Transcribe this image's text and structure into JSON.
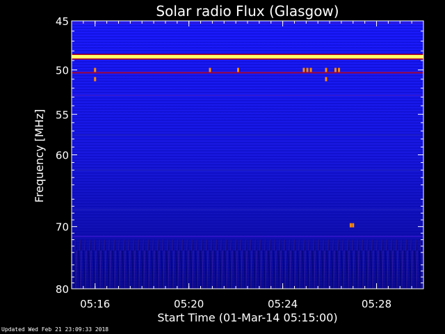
{
  "chart_data": {
    "type": "heatmap",
    "title": "Solar radio Flux (Glasgow)",
    "xlabel": "Start Time (01-Mar-14 05:15:00)",
    "ylabel": "Frequency [MHz]",
    "x_unit": "minutes after 05:00 UT",
    "xlim": [
      15.0,
      30.0
    ],
    "ylim": [
      80,
      45
    ],
    "x_ticks": [
      {
        "value": 16,
        "label": "05:16"
      },
      {
        "value": 20,
        "label": "05:20"
      },
      {
        "value": 24,
        "label": "05:24"
      },
      {
        "value": 28,
        "label": "05:28"
      }
    ],
    "y_ticks": [
      {
        "value": 45,
        "label": "45"
      },
      {
        "value": 50,
        "label": "50"
      },
      {
        "value": 55,
        "label": "55"
      },
      {
        "value": 60,
        "label": "60"
      },
      {
        "value": 70,
        "label": "70"
      },
      {
        "value": 80,
        "label": "80"
      }
    ],
    "bands": [
      {
        "freq": 45.2,
        "intensity": 0.45
      },
      {
        "freq": 48.6,
        "intensity": 1.0
      },
      {
        "freq": 50.3,
        "intensity": 0.6
      },
      {
        "freq": 52.8,
        "intensity": 0.3
      },
      {
        "freq": 57.5,
        "intensity": 0.22
      },
      {
        "freq": 62.0,
        "intensity": 0.18
      },
      {
        "freq": 67.5,
        "intensity": 0.15
      },
      {
        "freq": 71.5,
        "intensity": 0.25
      }
    ],
    "bursts": [
      {
        "x": 16.0,
        "freq": 50.0
      },
      {
        "x": 16.0,
        "freq": 51.0
      },
      {
        "x": 20.9,
        "freq": 50.0
      },
      {
        "x": 22.1,
        "freq": 50.0
      },
      {
        "x": 24.9,
        "freq": 50.0
      },
      {
        "x": 25.05,
        "freq": 50.0
      },
      {
        "x": 25.2,
        "freq": 50.0
      },
      {
        "x": 25.85,
        "freq": 50.0
      },
      {
        "x": 25.85,
        "freq": 51.0
      },
      {
        "x": 26.25,
        "freq": 50.0
      },
      {
        "x": 26.4,
        "freq": 50.0
      },
      {
        "x": 26.9,
        "freq": 69.8
      },
      {
        "x": 27.0,
        "freq": 69.8
      }
    ],
    "colormap": [
      "#000050",
      "#0000c8",
      "#2222ff",
      "#cc0000",
      "#ff8800",
      "#ffff66"
    ],
    "grid": false
  },
  "footer": "Updated Wed Feb 21 23:09:33 2018"
}
